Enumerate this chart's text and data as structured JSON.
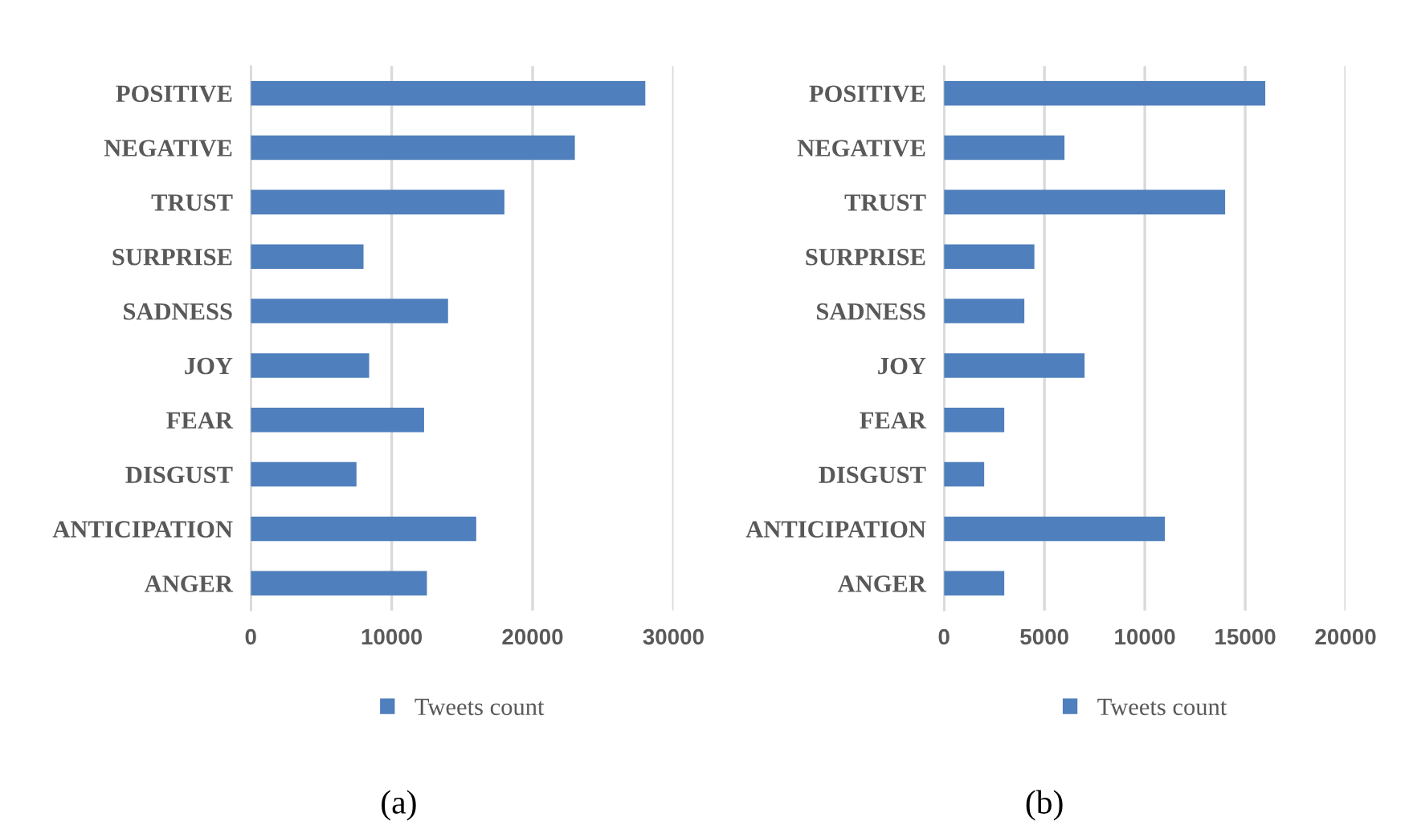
{
  "chart_data": [
    {
      "type": "bar",
      "orientation": "horizontal",
      "categories": [
        "POSITIVE",
        "NEGATIVE",
        "TRUST",
        "SURPRISE",
        "SADNESS",
        "JOY",
        "FEAR",
        "DISGUST",
        "ANTICIPATION",
        "ANGER"
      ],
      "series": [
        {
          "name": "Tweets count",
          "color": "#4f7fbc",
          "values": [
            28000,
            23000,
            18000,
            8000,
            14000,
            8400,
            12300,
            7500,
            16000,
            12500
          ]
        }
      ],
      "xlim": [
        0,
        30000
      ],
      "xticks": [
        0,
        10000,
        20000,
        30000
      ],
      "grid": "x",
      "legend": "bottom",
      "annotations": [
        "(a)"
      ]
    },
    {
      "type": "bar",
      "orientation": "horizontal",
      "categories": [
        "POSITIVE",
        "NEGATIVE",
        "TRUST",
        "SURPRISE",
        "SADNESS",
        "JOY",
        "FEAR",
        "DISGUST",
        "ANTICIPATION",
        "ANGER"
      ],
      "series": [
        {
          "name": "Tweets count",
          "color": "#4f7fbc",
          "values": [
            16000,
            6000,
            14000,
            4500,
            4000,
            7000,
            3000,
            2000,
            11000,
            3000
          ]
        }
      ],
      "xlim": [
        0,
        20000
      ],
      "xticks": [
        0,
        5000,
        10000,
        15000,
        20000
      ],
      "grid": "x",
      "legend": "bottom",
      "annotations": [
        "(b)"
      ]
    }
  ]
}
